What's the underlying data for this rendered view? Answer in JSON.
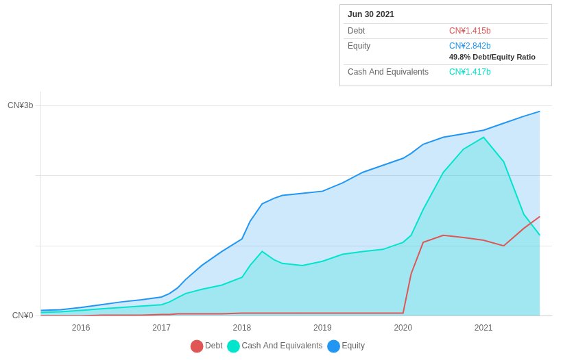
{
  "chart_data": {
    "type": "line",
    "x": [
      2015.5,
      2015.75,
      2016.0,
      2016.25,
      2016.5,
      2016.75,
      2017.0,
      2017.1,
      2017.2,
      2017.3,
      2017.5,
      2017.75,
      2018.0,
      2018.1,
      2018.25,
      2018.4,
      2018.5,
      2018.75,
      2019.0,
      2019.25,
      2019.5,
      2019.75,
      2020.0,
      2020.1,
      2020.25,
      2020.5,
      2020.75,
      2021.0,
      2021.25,
      2021.5,
      2021.7
    ],
    "series": [
      {
        "name": "Debt",
        "type": "line",
        "color": "#e05555",
        "values": [
          0.0,
          0.0,
          0.0,
          0.01,
          0.01,
          0.01,
          0.02,
          0.02,
          0.03,
          0.03,
          0.03,
          0.03,
          0.04,
          0.04,
          0.04,
          0.04,
          0.04,
          0.04,
          0.04,
          0.04,
          0.04,
          0.04,
          0.04,
          0.6,
          1.05,
          1.15,
          1.12,
          1.08,
          1.0,
          1.25,
          1.42
        ]
      },
      {
        "name": "Equity",
        "type": "area",
        "color": "#2196f3",
        "values": [
          0.08,
          0.09,
          0.12,
          0.16,
          0.2,
          0.23,
          0.27,
          0.32,
          0.4,
          0.52,
          0.72,
          0.92,
          1.1,
          1.35,
          1.6,
          1.68,
          1.72,
          1.75,
          1.78,
          1.9,
          2.05,
          2.15,
          2.25,
          2.32,
          2.45,
          2.55,
          2.6,
          2.65,
          2.75,
          2.85,
          2.92
        ]
      },
      {
        "name": "Cash And Equivalents",
        "type": "area",
        "color": "#00e5cc",
        "values": [
          0.05,
          0.06,
          0.08,
          0.1,
          0.12,
          0.14,
          0.16,
          0.2,
          0.26,
          0.32,
          0.38,
          0.44,
          0.55,
          0.72,
          0.92,
          0.8,
          0.75,
          0.72,
          0.78,
          0.88,
          0.92,
          0.95,
          1.05,
          1.15,
          1.52,
          2.05,
          2.38,
          2.55,
          2.2,
          1.45,
          1.15
        ]
      }
    ],
    "xlim": [
      2015.5,
      2021.85
    ],
    "xticks": [
      2016,
      2017,
      2018,
      2019,
      2020,
      2021
    ],
    "ylim": [
      0,
      3.2
    ],
    "yticks": [
      {
        "value": 0,
        "label": "CN¥0"
      },
      {
        "value": 1,
        "label": null
      },
      {
        "value": 2,
        "label": null
      },
      {
        "value": 3,
        "label": "CN¥3b"
      }
    ],
    "grid": "y",
    "legend": "bottom",
    "annotations": [
      {
        "title": "Jun 30 2021",
        "rows": [
          {
            "series": "Debt",
            "text": "CN¥1.415b"
          },
          {
            "series": "Equity",
            "text": "CN¥2.842b",
            "note": "49.8% Debt/Equity Ratio"
          },
          {
            "series": "Cash And Equivalents",
            "text": "CN¥1.417b"
          }
        ]
      }
    ]
  }
}
